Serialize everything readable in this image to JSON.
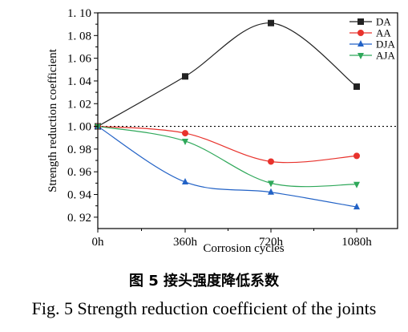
{
  "chart_data": {
    "type": "line",
    "categories": [
      "0h",
      "360h",
      "720h",
      "1080h"
    ],
    "xlabel": "Corrosion cycles",
    "ylabel": "Strength reduction coefficient",
    "ylim": [
      0.91,
      1.1
    ],
    "yticks": [
      0.92,
      0.94,
      0.96,
      0.98,
      1.0,
      1.02,
      1.04,
      1.06,
      1.08,
      1.1
    ],
    "ytick_labels": [
      "0. 92",
      "0. 94",
      "0. 96",
      "0. 98",
      "1. 00",
      "1. 02",
      "1. 04",
      "1. 06",
      "1. 08",
      "1. 10"
    ],
    "reference_line": 1.0,
    "legend_position": "top-right",
    "series": [
      {
        "name": "DA",
        "values": [
          1.0,
          1.044,
          1.091,
          1.035
        ],
        "color": "#222222",
        "marker": "square"
      },
      {
        "name": "AA",
        "values": [
          1.0,
          0.994,
          0.969,
          0.974
        ],
        "color": "#e8322c",
        "marker": "circle"
      },
      {
        "name": "DJA",
        "values": [
          1.0,
          0.951,
          0.942,
          0.929
        ],
        "color": "#2262c6",
        "marker": "triangle-up"
      },
      {
        "name": "AJA",
        "values": [
          1.0,
          0.987,
          0.95,
          0.949
        ],
        "color": "#2fa85a",
        "marker": "triangle-down"
      }
    ]
  },
  "caption": {
    "chinese": "图 5 接头强度降低系数",
    "english": "Fig. 5    Strength reduction coefficient of the joints"
  }
}
